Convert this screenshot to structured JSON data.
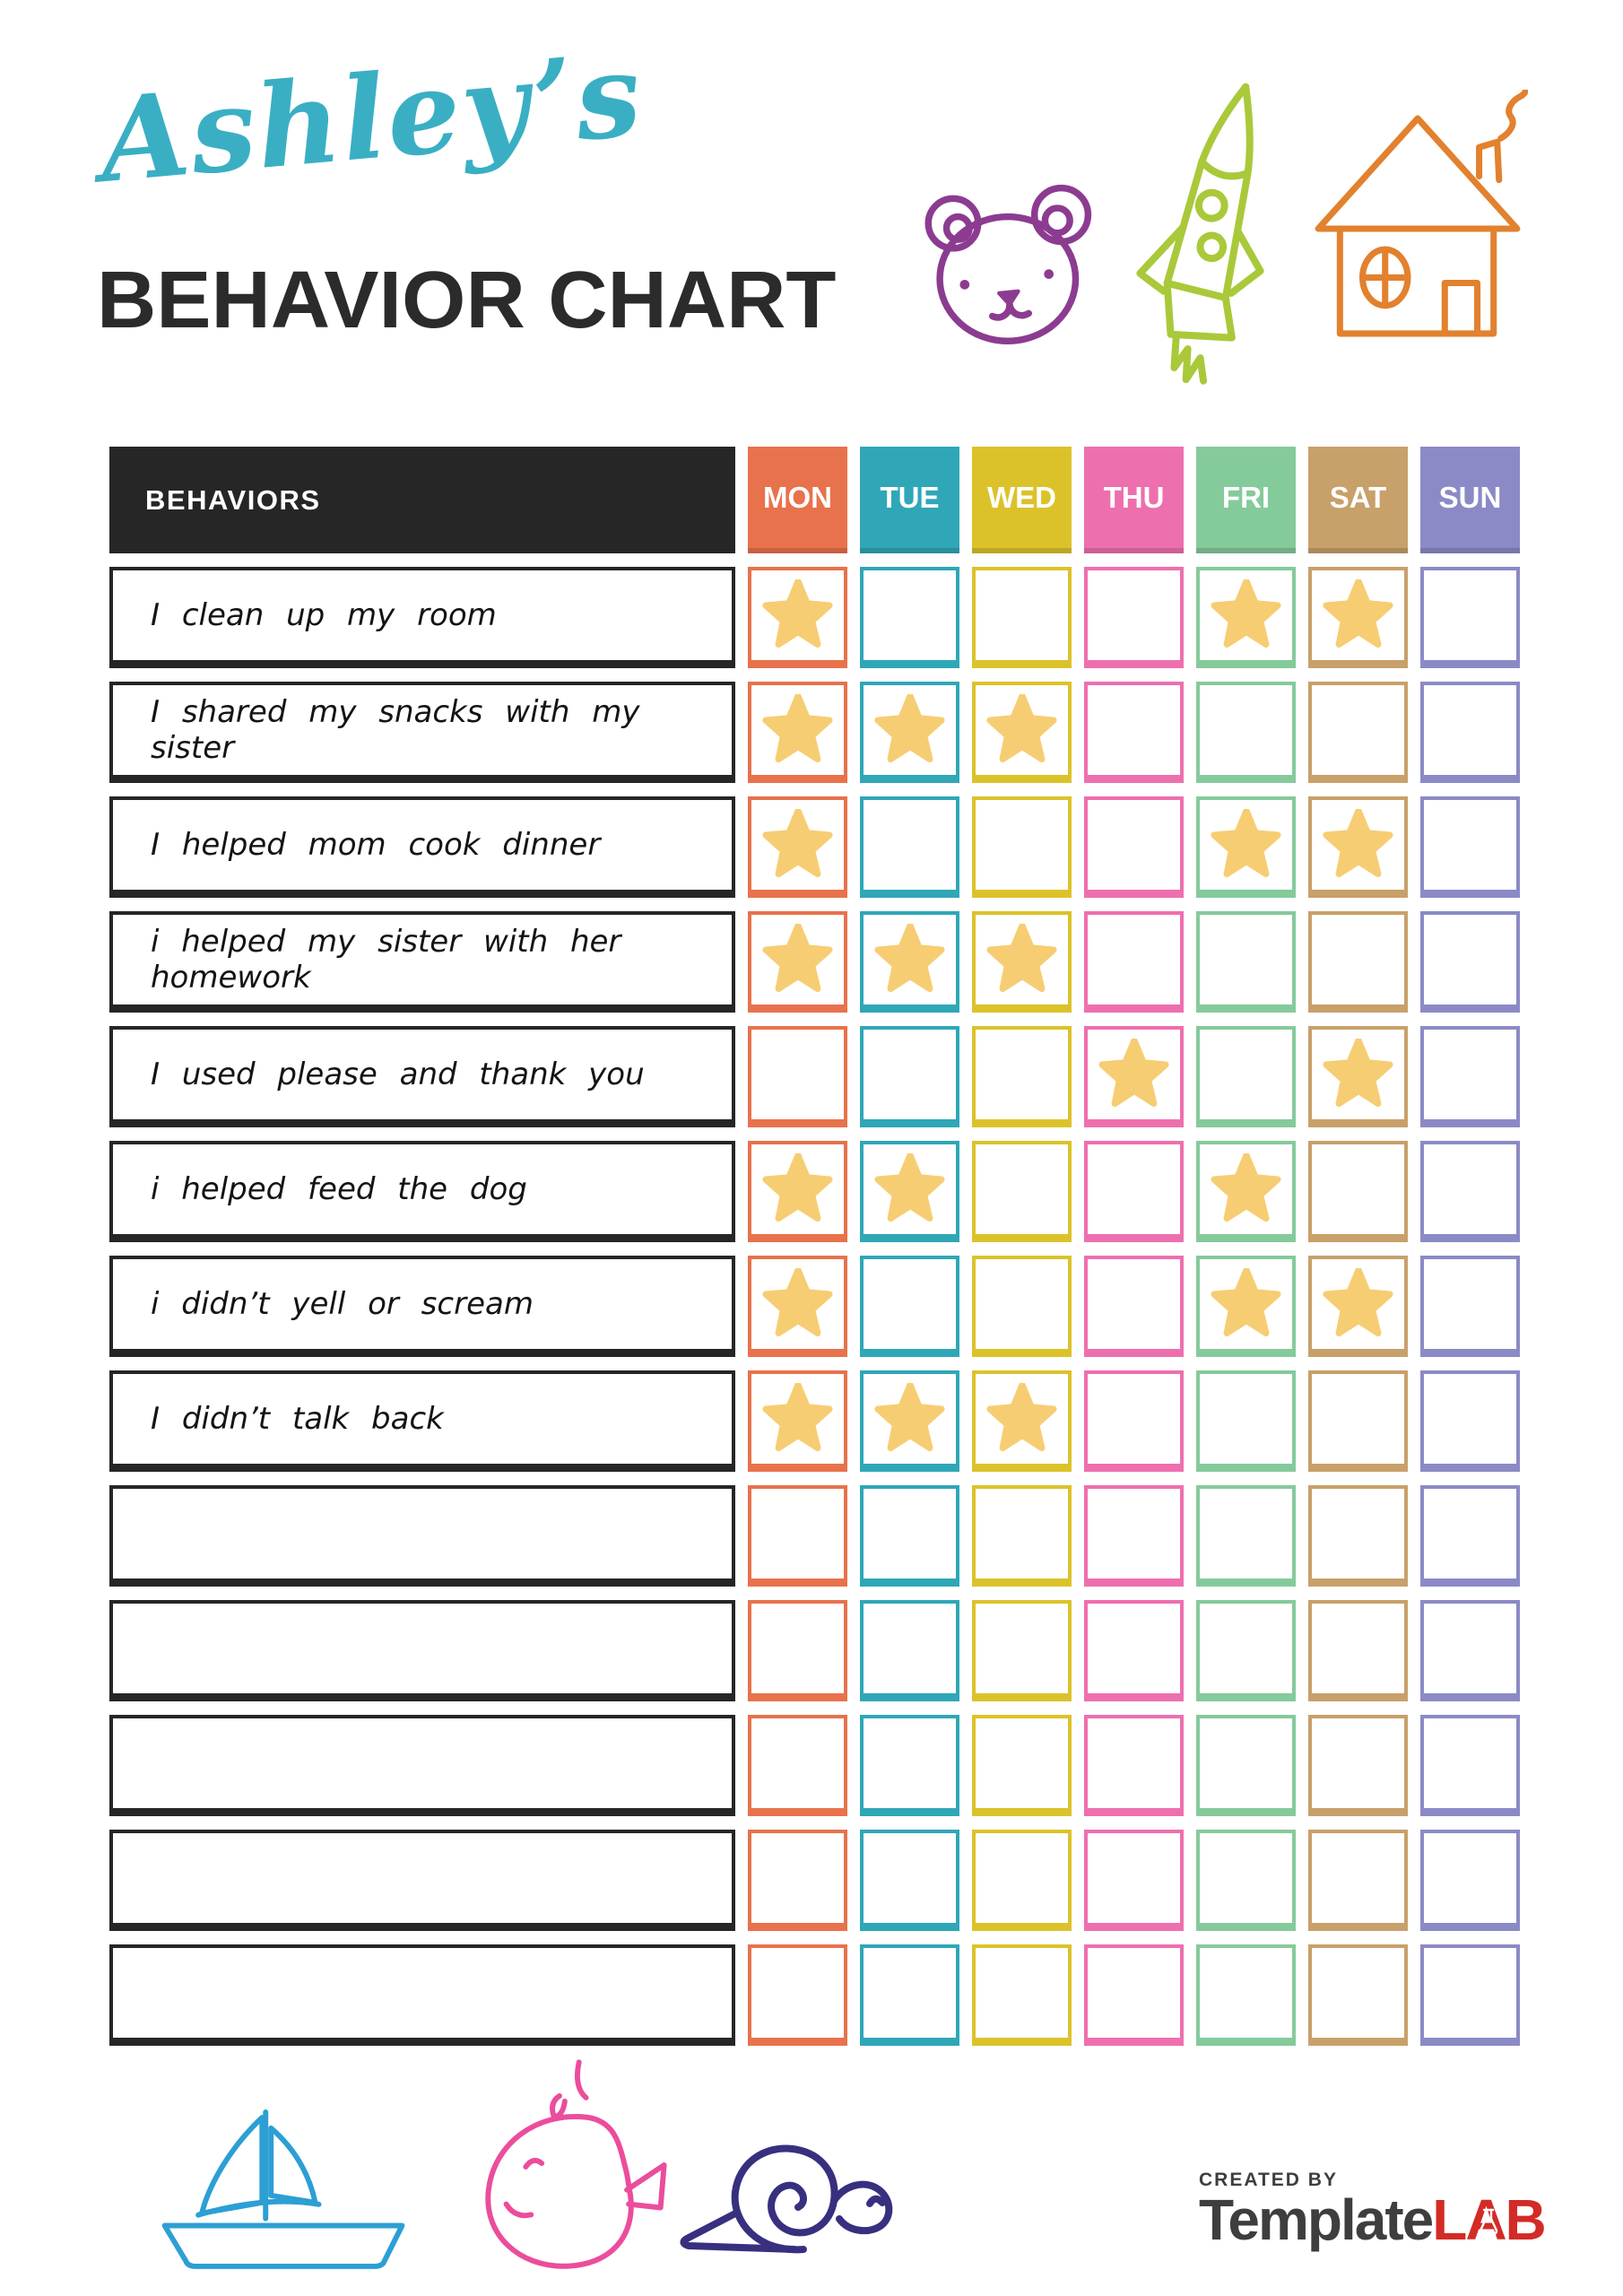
{
  "header": {
    "name": "Ashley’s",
    "title": "BEHAVIOR CHART"
  },
  "chart": {
    "behaviors_label": "BEHAVIORS",
    "header_bg": "#262626",
    "star_color": "#F7CD73",
    "days": [
      {
        "label": "MON",
        "color": "#E8724C"
      },
      {
        "label": "TUE",
        "color": "#2FA7B7"
      },
      {
        "label": "WED",
        "color": "#DCC22A"
      },
      {
        "label": "THU",
        "color": "#EE6FAE"
      },
      {
        "label": "FRI",
        "color": "#85CA9B"
      },
      {
        "label": "SAT",
        "color": "#C8A06A"
      },
      {
        "label": "SUN",
        "color": "#8B8AC6"
      }
    ],
    "rows": [
      {
        "behavior": "I clean up my room",
        "stars": [
          "MON",
          "FRI",
          "SAT"
        ]
      },
      {
        "behavior": "I shared my snacks with my sister",
        "stars": [
          "MON",
          "TUE",
          "WED"
        ]
      },
      {
        "behavior": "I helped mom cook dinner",
        "stars": [
          "MON",
          "FRI",
          "SAT"
        ]
      },
      {
        "behavior": "i helped my sister with her homework",
        "stars": [
          "MON",
          "TUE",
          "WED"
        ]
      },
      {
        "behavior": "I used please and thank you",
        "stars": [
          "THU",
          "SAT"
        ]
      },
      {
        "behavior": "i helped feed the dog",
        "stars": [
          "MON",
          "TUE",
          "FRI"
        ]
      },
      {
        "behavior": "i didn’t yell or scream",
        "stars": [
          "MON",
          "FRI",
          "SAT"
        ]
      },
      {
        "behavior": "I didn’t talk back",
        "stars": [
          "MON",
          "TUE",
          "WED"
        ]
      },
      {
        "behavior": "",
        "stars": []
      },
      {
        "behavior": "",
        "stars": []
      },
      {
        "behavior": "",
        "stars": []
      },
      {
        "behavior": "",
        "stars": []
      },
      {
        "behavior": "",
        "stars": []
      }
    ]
  },
  "doodles": {
    "top": [
      "bear-icon",
      "rocket-icon",
      "house-icon"
    ],
    "bottom": [
      "sailboat-icon",
      "whale-icon",
      "snail-icon"
    ],
    "colors": {
      "bear": "#8C3C90",
      "rocket": "#A9C93A",
      "house": "#E2812E",
      "boat": "#2C9FD4",
      "whale": "#EB4D9C",
      "snail": "#37307F"
    }
  },
  "footer": {
    "created_by": "CREATED BY",
    "brand_template": "Template",
    "brand_lab": "LAB"
  }
}
